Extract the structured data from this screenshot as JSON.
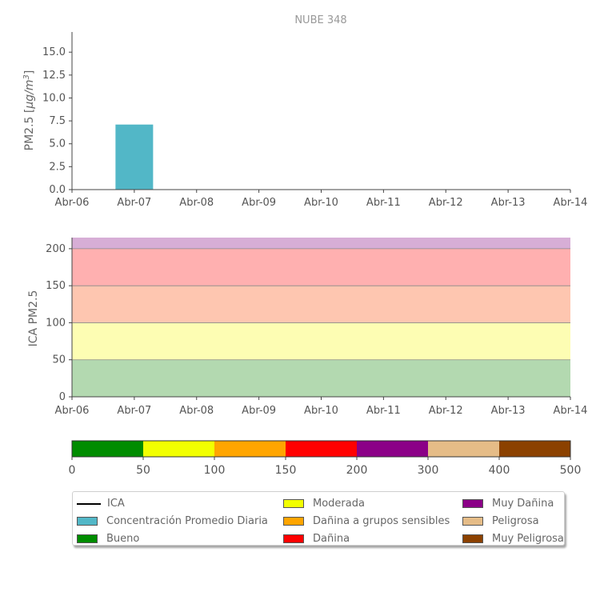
{
  "chart_data": [
    {
      "type": "bar",
      "title": "NUBE 348",
      "ylabel_main": "PM2.5 [",
      "ylabel_unit_main": "μg/m",
      "ylabel_unit_sup": "3",
      "ylabel_close": "]",
      "x_ticks": [
        "Abr-06",
        "Abr-07",
        "Abr-08",
        "Abr-09",
        "Abr-10",
        "Abr-11",
        "Abr-12",
        "Abr-13",
        "Abr-14"
      ],
      "y_ticks": [
        "0.0",
        "2.5",
        "5.0",
        "7.5",
        "10.0",
        "12.5",
        "15.0"
      ],
      "ylim": [
        0,
        17.2
      ],
      "series": [
        {
          "x": "Abr-07",
          "value": 7.1,
          "color": "#52b7c7"
        }
      ],
      "grid": false
    },
    {
      "type": "area",
      "ylabel": "ICA PM2.5",
      "x_ticks": [
        "Abr-06",
        "Abr-07",
        "Abr-08",
        "Abr-09",
        "Abr-10",
        "Abr-11",
        "Abr-12",
        "Abr-13",
        "Abr-14"
      ],
      "y_ticks": [
        "0",
        "50",
        "100",
        "150",
        "200"
      ],
      "ylim": [
        0,
        215
      ],
      "bands": [
        {
          "from": 0,
          "to": 50,
          "color": "#b3d9b0"
        },
        {
          "from": 50,
          "to": 100,
          "color": "#fdfdb3"
        },
        {
          "from": 100,
          "to": 150,
          "color": "#fec6b0"
        },
        {
          "from": 150,
          "to": 200,
          "color": "#ffb0b0"
        },
        {
          "from": 200,
          "to": 215,
          "color": "#d7aed6"
        }
      ]
    },
    {
      "type": "colorbar",
      "ticks": [
        "0",
        "50",
        "100",
        "150",
        "200",
        "300",
        "400",
        "500"
      ],
      "segments": [
        {
          "from": 0,
          "to": 50,
          "color": "#008c00"
        },
        {
          "from": 50,
          "to": 100,
          "color": "#f2ff00"
        },
        {
          "from": 100,
          "to": 150,
          "color": "#ffa500"
        },
        {
          "from": 150,
          "to": 200,
          "color": "#ff0000"
        },
        {
          "from": 200,
          "to": 300,
          "color": "#8b0087"
        },
        {
          "from": 300,
          "to": 400,
          "color": "#e5bc87"
        },
        {
          "from": 400,
          "to": 500,
          "color": "#8b4100"
        }
      ]
    }
  ],
  "legend": {
    "columns": [
      [
        {
          "label": "ICA",
          "kind": "line",
          "color": "#000000"
        },
        {
          "label": "Concentración Promedio Diaria",
          "kind": "swatch",
          "color": "#52b7c7"
        },
        {
          "label": "Bueno",
          "kind": "swatch",
          "color": "#008c00"
        }
      ],
      [
        {
          "label": "Moderada",
          "kind": "swatch",
          "color": "#f2ff00"
        },
        {
          "label": "Dañina a grupos sensibles",
          "kind": "swatch",
          "color": "#ffa500"
        },
        {
          "label": "Dañina",
          "kind": "swatch",
          "color": "#ff0000"
        }
      ],
      [
        {
          "label": "Muy Dañina",
          "kind": "swatch",
          "color": "#8b0087"
        },
        {
          "label": "Peligrosa",
          "kind": "swatch",
          "color": "#e5bc87"
        },
        {
          "label": "Muy Peligrosa",
          "kind": "swatch",
          "color": "#8b4100"
        }
      ]
    ]
  }
}
